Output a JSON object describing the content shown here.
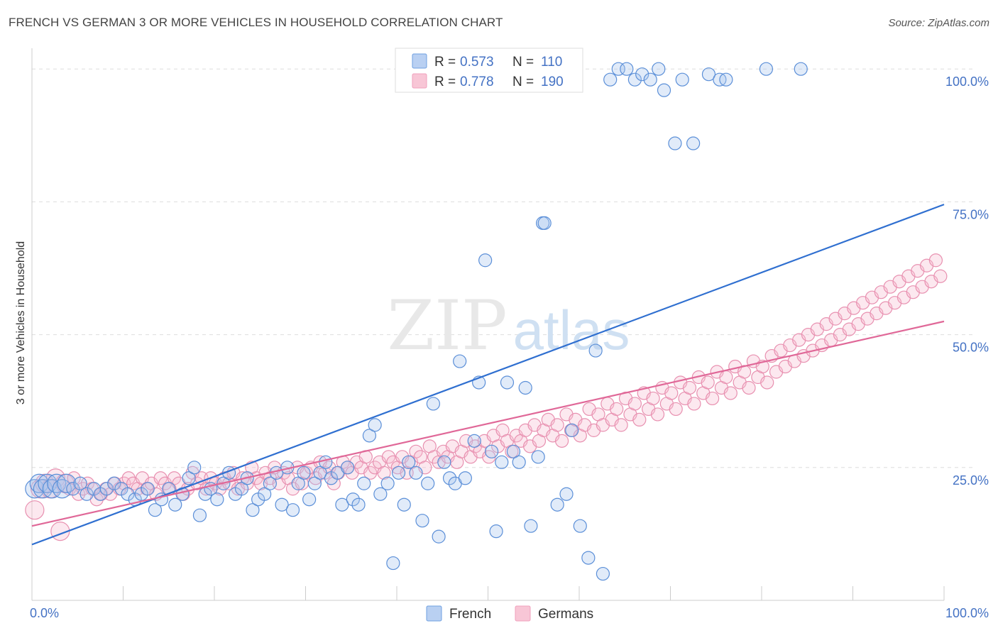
{
  "title": "FRENCH VS GERMAN 3 OR MORE VEHICLES IN HOUSEHOLD CORRELATION CHART",
  "source": "Source: ZipAtlas.com",
  "watermark": {
    "zip": "ZIP",
    "atlas": "atlas"
  },
  "colors": {
    "french": "#6fa0e0",
    "germans": "#f0a0bc",
    "french_line": "#2f6fd0",
    "germans_line": "#e06898",
    "tick": "#4472c4"
  },
  "legend_top": [
    {
      "r_label": "R = ",
      "r_value": "0.573",
      "n_label": "N = ",
      "n_value": "110",
      "color": "#6fa0e0"
    },
    {
      "r_label": "R = ",
      "r_value": "0.778",
      "n_label": "N = ",
      "n_value": "190",
      "color": "#f0a0bc"
    }
  ],
  "legend_bottom": [
    {
      "name": "French",
      "color": "#6fa0e0"
    },
    {
      "name": "Germans",
      "color": "#f0a0bc"
    }
  ],
  "chart_data": {
    "type": "scatter",
    "title": "FRENCH VS GERMAN 3 OR MORE VEHICLES IN HOUSEHOLD CORRELATION CHART",
    "xlabel": "",
    "ylabel": "3 or more Vehicles in Household",
    "xlim": [
      0,
      100
    ],
    "ylim": [
      0,
      100
    ],
    "x_tick_labels": [
      "0.0%",
      "100.0%"
    ],
    "y_ticks": [
      25,
      50,
      75,
      100
    ],
    "y_tick_labels": [
      "25.0%",
      "50.0%",
      "75.0%",
      "100.0%"
    ],
    "grid": true,
    "legend": "top-center",
    "series": [
      {
        "name": "French",
        "r": 0.573,
        "n": 110,
        "trend": [
          [
            0,
            10.5
          ],
          [
            100,
            74.5
          ]
        ],
        "points": [
          [
            0.3,
            21
          ],
          [
            0.8,
            22
          ],
          [
            1.2,
            21
          ],
          [
            1.7,
            22
          ],
          [
            2.2,
            21
          ],
          [
            2.7,
            22
          ],
          [
            3.3,
            21
          ],
          [
            3.8,
            22
          ],
          [
            4.5,
            21
          ],
          [
            5.3,
            22
          ],
          [
            6,
            20
          ],
          [
            6.8,
            21
          ],
          [
            7.5,
            20
          ],
          [
            8.2,
            21
          ],
          [
            9,
            22
          ],
          [
            9.8,
            21
          ],
          [
            10.5,
            20
          ],
          [
            11.3,
            19
          ],
          [
            12,
            20
          ],
          [
            12.7,
            21
          ],
          [
            13.5,
            17
          ],
          [
            14.2,
            19
          ],
          [
            15,
            21
          ],
          [
            15.7,
            18
          ],
          [
            16.5,
            20
          ],
          [
            17.2,
            23
          ],
          [
            17.8,
            25
          ],
          [
            18.4,
            16
          ],
          [
            19,
            20
          ],
          [
            19.6,
            21
          ],
          [
            20.3,
            19
          ],
          [
            21,
            22
          ],
          [
            21.6,
            24
          ],
          [
            22.3,
            20
          ],
          [
            23,
            21
          ],
          [
            23.6,
            23
          ],
          [
            24.2,
            17
          ],
          [
            24.8,
            19
          ],
          [
            25.5,
            20
          ],
          [
            26.1,
            22
          ],
          [
            26.8,
            24
          ],
          [
            27.4,
            18
          ],
          [
            28,
            25
          ],
          [
            28.6,
            17
          ],
          [
            29.2,
            22
          ],
          [
            29.8,
            24
          ],
          [
            30.4,
            19
          ],
          [
            31,
            22
          ],
          [
            31.6,
            24
          ],
          [
            32.2,
            26
          ],
          [
            32.8,
            23
          ],
          [
            33.5,
            24
          ],
          [
            34,
            18
          ],
          [
            34.6,
            25
          ],
          [
            35.2,
            19
          ],
          [
            35.8,
            18
          ],
          [
            36.4,
            22
          ],
          [
            37,
            31
          ],
          [
            37.6,
            33
          ],
          [
            38.2,
            20
          ],
          [
            39,
            22
          ],
          [
            39.6,
            7
          ],
          [
            40.2,
            24
          ],
          [
            40.8,
            18
          ],
          [
            41.3,
            26
          ],
          [
            42.1,
            24
          ],
          [
            42.8,
            15
          ],
          [
            43.4,
            22
          ],
          [
            44,
            37
          ],
          [
            44.6,
            12
          ],
          [
            45.2,
            26
          ],
          [
            45.8,
            23
          ],
          [
            46.4,
            22
          ],
          [
            46.9,
            45
          ],
          [
            47.5,
            23
          ],
          [
            48.5,
            30
          ],
          [
            49,
            41
          ],
          [
            49.7,
            64
          ],
          [
            50.4,
            28
          ],
          [
            50.9,
            13
          ],
          [
            51.5,
            26
          ],
          [
            52.1,
            41
          ],
          [
            52.8,
            28
          ],
          [
            53.4,
            26
          ],
          [
            54.1,
            40
          ],
          [
            54.7,
            14
          ],
          [
            55.5,
            27
          ],
          [
            56,
            71
          ],
          [
            56.2,
            71
          ],
          [
            57.6,
            18
          ],
          [
            58.6,
            20
          ],
          [
            59.2,
            32
          ],
          [
            60.1,
            14
          ],
          [
            61,
            8
          ],
          [
            61.8,
            47
          ],
          [
            62.6,
            5
          ],
          [
            63.4,
            98
          ],
          [
            64.3,
            100
          ],
          [
            65.2,
            100
          ],
          [
            66.1,
            98
          ],
          [
            66.9,
            99
          ],
          [
            67.8,
            98
          ],
          [
            68.7,
            100
          ],
          [
            69.3,
            96
          ],
          [
            70.5,
            86
          ],
          [
            71.3,
            98
          ],
          [
            72.5,
            86
          ],
          [
            74.2,
            99
          ],
          [
            75.4,
            98
          ],
          [
            76.1,
            98
          ],
          [
            80.5,
            100
          ],
          [
            84.3,
            100
          ]
        ]
      },
      {
        "name": "Germans",
        "r": 0.778,
        "n": 190,
        "trend": [
          [
            0,
            14
          ],
          [
            100,
            52.5
          ]
        ],
        "points": [
          [
            0.3,
            17
          ],
          [
            0.9,
            21
          ],
          [
            1.4,
            22
          ],
          [
            2,
            21
          ],
          [
            2.6,
            23
          ],
          [
            3.1,
            13
          ],
          [
            3.6,
            22
          ],
          [
            4.1,
            21
          ],
          [
            4.6,
            23
          ],
          [
            5.1,
            20
          ],
          [
            5.6,
            21
          ],
          [
            6.1,
            22
          ],
          [
            6.6,
            21
          ],
          [
            7.1,
            19
          ],
          [
            7.6,
            20
          ],
          [
            8.1,
            21
          ],
          [
            8.6,
            20
          ],
          [
            9.1,
            22
          ],
          [
            9.6,
            21
          ],
          [
            10.1,
            22
          ],
          [
            10.6,
            23
          ],
          [
            11.1,
            22
          ],
          [
            11.6,
            21
          ],
          [
            12.1,
            23
          ],
          [
            12.6,
            21
          ],
          [
            13.1,
            22
          ],
          [
            13.6,
            20
          ],
          [
            14.1,
            23
          ],
          [
            14.6,
            22
          ],
          [
            15.1,
            21
          ],
          [
            15.6,
            23
          ],
          [
            16.1,
            22
          ],
          [
            16.6,
            20
          ],
          [
            17.1,
            21
          ],
          [
            17.6,
            24
          ],
          [
            18.1,
            22
          ],
          [
            18.6,
            23
          ],
          [
            19.1,
            21
          ],
          [
            19.6,
            23
          ],
          [
            20.1,
            22
          ],
          [
            20.6,
            21
          ],
          [
            21.1,
            23
          ],
          [
            21.6,
            22
          ],
          [
            22.1,
            24
          ],
          [
            22.6,
            21
          ],
          [
            23.1,
            23
          ],
          [
            23.6,
            22
          ],
          [
            24.1,
            25
          ],
          [
            24.6,
            23
          ],
          [
            25.1,
            22
          ],
          [
            25.6,
            24
          ],
          [
            26.1,
            23
          ],
          [
            26.6,
            25
          ],
          [
            27.1,
            22
          ],
          [
            27.6,
            24
          ],
          [
            28.1,
            23
          ],
          [
            28.6,
            21
          ],
          [
            29.1,
            25
          ],
          [
            29.6,
            22
          ],
          [
            30.1,
            24
          ],
          [
            30.6,
            25
          ],
          [
            31.1,
            23
          ],
          [
            31.6,
            26
          ],
          [
            32.1,
            24
          ],
          [
            32.6,
            25
          ],
          [
            33.1,
            22
          ],
          [
            33.6,
            24
          ],
          [
            34.1,
            26
          ],
          [
            34.6,
            25
          ],
          [
            35.1,
            24
          ],
          [
            35.6,
            26
          ],
          [
            36.1,
            25
          ],
          [
            36.6,
            27
          ],
          [
            37.1,
            24
          ],
          [
            37.6,
            25
          ],
          [
            38.1,
            26
          ],
          [
            38.6,
            24
          ],
          [
            39.1,
            27
          ],
          [
            39.6,
            26
          ],
          [
            40.1,
            25
          ],
          [
            40.6,
            27
          ],
          [
            41.1,
            24
          ],
          [
            41.6,
            26
          ],
          [
            42.1,
            28
          ],
          [
            42.6,
            27
          ],
          [
            43.1,
            25
          ],
          [
            43.6,
            29
          ],
          [
            44.1,
            27
          ],
          [
            44.6,
            26
          ],
          [
            45.1,
            28
          ],
          [
            45.6,
            27
          ],
          [
            46.1,
            29
          ],
          [
            46.6,
            26
          ],
          [
            47.1,
            28
          ],
          [
            47.6,
            30
          ],
          [
            48.1,
            27
          ],
          [
            48.6,
            29
          ],
          [
            49.1,
            28
          ],
          [
            49.6,
            30
          ],
          [
            50.1,
            27
          ],
          [
            50.6,
            31
          ],
          [
            51.1,
            29
          ],
          [
            51.6,
            32
          ],
          [
            52.1,
            30
          ],
          [
            52.6,
            28
          ],
          [
            53.1,
            31
          ],
          [
            53.6,
            30
          ],
          [
            54.1,
            32
          ],
          [
            54.6,
            29
          ],
          [
            55.1,
            33
          ],
          [
            55.6,
            30
          ],
          [
            56.1,
            32
          ],
          [
            56.6,
            34
          ],
          [
            57.1,
            31
          ],
          [
            57.6,
            33
          ],
          [
            58.1,
            30
          ],
          [
            58.6,
            35
          ],
          [
            59.1,
            32
          ],
          [
            59.6,
            34
          ],
          [
            60.1,
            31
          ],
          [
            60.6,
            33
          ],
          [
            61.1,
            36
          ],
          [
            61.6,
            32
          ],
          [
            62.1,
            35
          ],
          [
            62.6,
            33
          ],
          [
            63.1,
            37
          ],
          [
            63.6,
            34
          ],
          [
            64.1,
            36
          ],
          [
            64.6,
            33
          ],
          [
            65.1,
            38
          ],
          [
            65.6,
            35
          ],
          [
            66.1,
            37
          ],
          [
            66.6,
            34
          ],
          [
            67.1,
            39
          ],
          [
            67.6,
            36
          ],
          [
            68.1,
            38
          ],
          [
            68.6,
            35
          ],
          [
            69.1,
            40
          ],
          [
            69.6,
            37
          ],
          [
            70.1,
            39
          ],
          [
            70.6,
            36
          ],
          [
            71.1,
            41
          ],
          [
            71.6,
            38
          ],
          [
            72.1,
            40
          ],
          [
            72.6,
            37
          ],
          [
            73.1,
            42
          ],
          [
            73.6,
            39
          ],
          [
            74.1,
            41
          ],
          [
            74.6,
            38
          ],
          [
            75.1,
            43
          ],
          [
            75.6,
            40
          ],
          [
            76.1,
            42
          ],
          [
            76.6,
            39
          ],
          [
            77.1,
            44
          ],
          [
            77.6,
            41
          ],
          [
            78.1,
            43
          ],
          [
            78.6,
            40
          ],
          [
            79.1,
            45
          ],
          [
            79.6,
            42
          ],
          [
            80.1,
            44
          ],
          [
            80.6,
            41
          ],
          [
            81.1,
            46
          ],
          [
            81.6,
            43
          ],
          [
            82.1,
            47
          ],
          [
            82.6,
            44
          ],
          [
            83.1,
            48
          ],
          [
            83.6,
            45
          ],
          [
            84.1,
            49
          ],
          [
            84.6,
            46
          ],
          [
            85.1,
            50
          ],
          [
            85.6,
            47
          ],
          [
            86.1,
            51
          ],
          [
            86.6,
            48
          ],
          [
            87.1,
            52
          ],
          [
            87.6,
            49
          ],
          [
            88.1,
            53
          ],
          [
            88.6,
            50
          ],
          [
            89.1,
            54
          ],
          [
            89.6,
            51
          ],
          [
            90.1,
            55
          ],
          [
            90.6,
            52
          ],
          [
            91.1,
            56
          ],
          [
            91.6,
            53
          ],
          [
            92.1,
            57
          ],
          [
            92.6,
            54
          ],
          [
            93.1,
            58
          ],
          [
            93.6,
            55
          ],
          [
            94.1,
            59
          ],
          [
            94.6,
            56
          ],
          [
            95.1,
            60
          ],
          [
            95.6,
            57
          ],
          [
            96.1,
            61
          ],
          [
            96.6,
            58
          ],
          [
            97.1,
            62
          ],
          [
            97.6,
            59
          ],
          [
            98.1,
            63
          ],
          [
            98.6,
            60
          ],
          [
            99.1,
            64
          ],
          [
            99.6,
            61
          ]
        ]
      }
    ]
  }
}
